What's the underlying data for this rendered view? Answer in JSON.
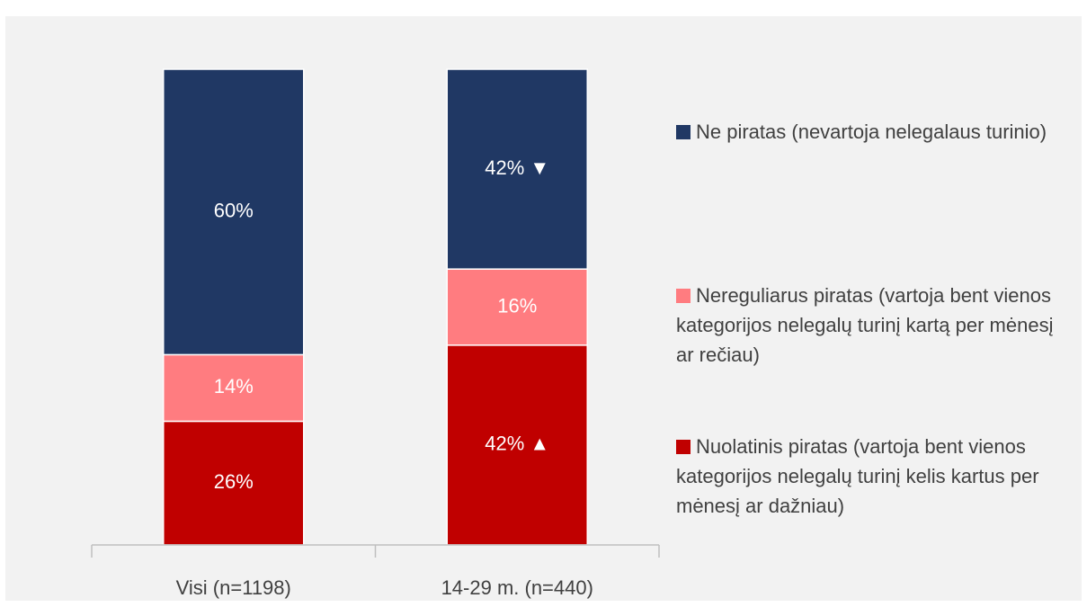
{
  "chart_data": {
    "type": "stacked_bar",
    "categories": [
      "Visi (n=1198)",
      "14-29 m. (n=440)"
    ],
    "ylim": [
      0,
      100
    ],
    "series": [
      {
        "name": "Nuolatinis piratas (vartoja bent vienos kategorijos nelegalų turinį kelis kartus per mėnesį ar dažniau)",
        "color": "#c00000",
        "values": [
          26,
          42
        ],
        "value_labels": [
          "26%",
          "42% ▲"
        ]
      },
      {
        "name": "Nereguliarus piratas (vartoja bent vienos kategorijos nelegalų turinį kartą per mėnesį ar rečiau)",
        "color": "#ff7c80",
        "values": [
          14,
          16
        ],
        "value_labels": [
          "14%",
          "16%"
        ]
      },
      {
        "name": "Ne piratas (nevartoja nelegalaus turinio)",
        "color": "#203864",
        "values": [
          60,
          42
        ],
        "value_labels": [
          "60%",
          "42% ▼"
        ]
      }
    ]
  }
}
